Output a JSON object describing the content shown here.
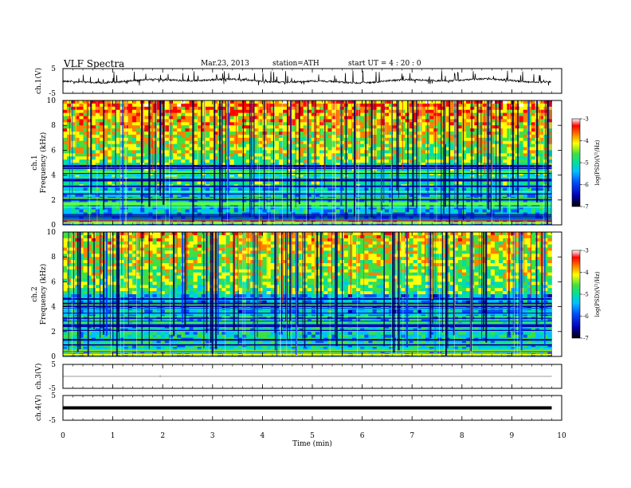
{
  "header": {
    "title": "VLF  Spectra",
    "date": "Mar.23, 2013",
    "station": "station=ATH",
    "start": "start  UT  =   4  : 20 : 0"
  },
  "chart_data": [
    {
      "type": "line",
      "panel": "ch1-waveform",
      "ylabel": "ch.1(V)",
      "ylim": [
        -5,
        5
      ],
      "yticks": [
        "5",
        "-5"
      ],
      "xlim": [
        0,
        10
      ],
      "trace_level": 0,
      "trace_color": "#000000"
    },
    {
      "type": "heatmap",
      "panel": "ch1-spectrogram",
      "ylabel_channel": "ch.1",
      "ylabel": "Frequency  (kHz)",
      "ylim": [
        0,
        10
      ],
      "yticks": [
        "0",
        "2",
        "4",
        "6",
        "8",
        "10"
      ],
      "xlim": [
        0,
        10
      ],
      "data_end_min": 9.8,
      "colorbar": {
        "label": "log(PSD)(V²/Hz)",
        "range": [
          -7,
          -3
        ],
        "ticks": [
          "-3",
          "-4",
          "-5",
          "-6",
          "-7"
        ]
      }
    },
    {
      "type": "heatmap",
      "panel": "ch2-spectrogram",
      "ylabel_channel": "ch.2",
      "ylabel": "Frequency  (kHz)",
      "ylim": [
        0,
        10
      ],
      "yticks": [
        "0",
        "2",
        "4",
        "6",
        "8",
        "10"
      ],
      "xlim": [
        0,
        10
      ],
      "data_end_min": 9.8,
      "colorbar": {
        "label": "log(PSD)(V²/Hz)",
        "range": [
          -7,
          -3
        ],
        "ticks": [
          "-3",
          "-4",
          "-5",
          "-6",
          "-7"
        ]
      }
    },
    {
      "type": "line",
      "panel": "ch3-waveform",
      "ylabel": "ch.3(V)",
      "ylim": [
        -5,
        5
      ],
      "yticks": [
        "5",
        "-5"
      ],
      "xlim": [
        0,
        10
      ],
      "trace_level": 0,
      "trace_color": "#777777"
    },
    {
      "type": "line",
      "panel": "ch4-waveform",
      "ylabel": "ch.4(V)",
      "ylim": [
        -5,
        5
      ],
      "yticks": [
        "5",
        "-5"
      ],
      "xlim": [
        0,
        10
      ],
      "trace_level": 0,
      "trace_color": "#000000"
    }
  ],
  "xaxis": {
    "label": "Time  (min)",
    "range": [
      0,
      10
    ],
    "ticks": [
      "0",
      "1",
      "2",
      "3",
      "4",
      "5",
      "6",
      "7",
      "8",
      "9",
      "10"
    ]
  },
  "colormap": [
    "#000000",
    "#0000b0",
    "#0050ff",
    "#00c0ff",
    "#00e0a0",
    "#40e040",
    "#ffff00",
    "#ff8000",
    "#ff0000",
    "#ffffff"
  ]
}
